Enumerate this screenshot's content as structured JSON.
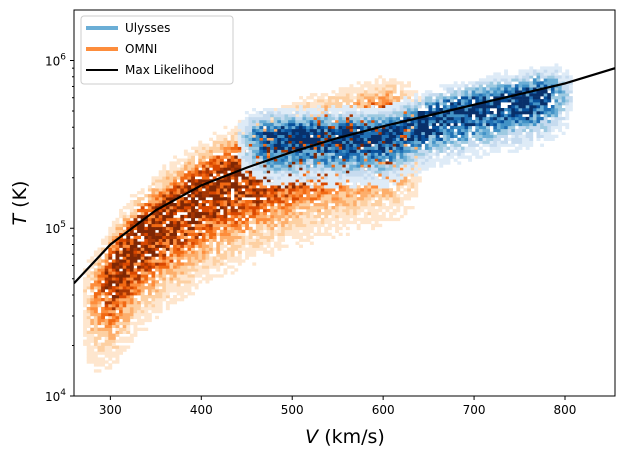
{
  "chart_data": {
    "type": "heatmap",
    "title": "",
    "xlabel_var": "V",
    "xlabel_unit": " (km/s)",
    "ylabel_var": "T",
    "ylabel_unit": " (K)",
    "x_scale": "linear",
    "y_scale": "log",
    "xlim": [
      260,
      855
    ],
    "ylim": [
      10000,
      2000000
    ],
    "x_ticks": [
      300,
      400,
      500,
      600,
      700,
      800
    ],
    "x_tick_labels": [
      "300",
      "400",
      "500",
      "600",
      "700",
      "800"
    ],
    "y_ticks": [
      10000,
      100000,
      1000000
    ],
    "y_tick_labels": [
      {
        "base": "10",
        "exp": "4"
      },
      {
        "base": "10",
        "exp": "5"
      },
      {
        "base": "10",
        "exp": "6"
      }
    ],
    "legend_position": "upper-left",
    "grid": false,
    "series": [
      {
        "name": "Ulysses",
        "kind": "2d-histogram",
        "color": "#6baed6",
        "colormap": "Blues",
        "v_range": [
          440,
          805
        ],
        "core": [
          {
            "v": 600,
            "T": 350000
          },
          {
            "v": 650,
            "T": 450000
          },
          {
            "v": 700,
            "T": 520000
          },
          {
            "v": 750,
            "T": 580000
          },
          {
            "v": 790,
            "T": 650000
          }
        ]
      },
      {
        "name": "OMNI",
        "kind": "2d-histogram",
        "color": "#fd8d3c",
        "colormap": "Oranges",
        "v_range": [
          270,
          640
        ],
        "core": [
          {
            "v": 280,
            "T": 40000
          },
          {
            "v": 300,
            "T": 55000
          },
          {
            "v": 330,
            "T": 90000
          },
          {
            "v": 360,
            "T": 120000
          },
          {
            "v": 400,
            "T": 170000
          },
          {
            "v": 450,
            "T": 230000
          },
          {
            "v": 500,
            "T": 290000
          },
          {
            "v": 550,
            "T": 350000
          },
          {
            "v": 600,
            "T": 400000
          }
        ]
      },
      {
        "name": "Max Likelihood",
        "kind": "line",
        "color": "#000000",
        "points": [
          {
            "v": 260,
            "T": 47000
          },
          {
            "v": 300,
            "T": 80000
          },
          {
            "v": 350,
            "T": 128000
          },
          {
            "v": 400,
            "T": 180000
          },
          {
            "v": 450,
            "T": 230000
          },
          {
            "v": 500,
            "T": 285000
          },
          {
            "v": 550,
            "T": 345000
          },
          {
            "v": 600,
            "T": 405000
          },
          {
            "v": 650,
            "T": 470000
          },
          {
            "v": 700,
            "T": 545000
          },
          {
            "v": 750,
            "T": 630000
          },
          {
            "v": 800,
            "T": 730000
          },
          {
            "v": 855,
            "T": 900000
          }
        ]
      }
    ]
  }
}
